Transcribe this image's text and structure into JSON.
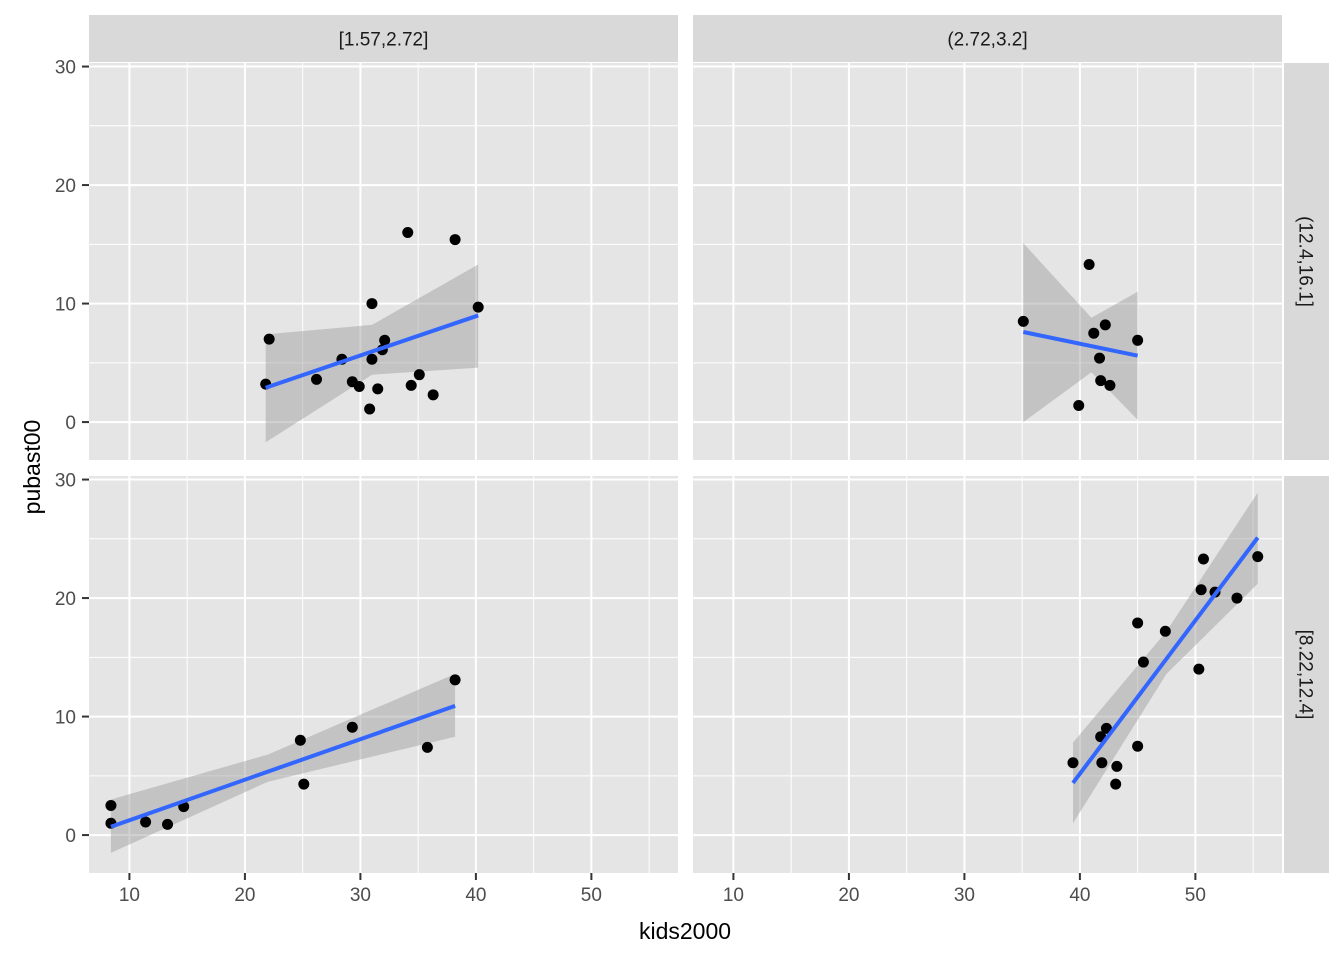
{
  "chart_data": {
    "type": "scatter",
    "facet_type": "grid",
    "xlabel": "kids2000",
    "ylabel": "pubast00",
    "xlim": [
      6.5,
      57.5
    ],
    "ylim": [
      -3.2,
      30.3
    ],
    "x_ticks": [
      10,
      20,
      30,
      40,
      50
    ],
    "y_ticks": [
      0,
      10,
      20,
      30
    ],
    "grid": true,
    "smooth": "lm with confidence band",
    "column_strips": [
      "[1.57,2.72]",
      "(2.72,3.2]"
    ],
    "row_strips": [
      "(12.4,16.1]",
      "[8.22,12.4]"
    ],
    "colors": {
      "panel_bg": "#e5e5e5",
      "strip_bg": "#d9d9d9",
      "grid": "#ffffff",
      "point": "#000000",
      "line": "#3366ff",
      "band": "#999999"
    },
    "panels": [
      {
        "row": 0,
        "col": 0,
        "points": [
          [
            21.8,
            3.2
          ],
          [
            22.1,
            7.0
          ],
          [
            26.2,
            3.6
          ],
          [
            28.4,
            5.3
          ],
          [
            29.3,
            3.4
          ],
          [
            29.9,
            3.0
          ],
          [
            30.8,
            1.1
          ],
          [
            31.0,
            10.0
          ],
          [
            31.0,
            5.3
          ],
          [
            31.5,
            2.8
          ],
          [
            31.9,
            6.1
          ],
          [
            32.1,
            6.9
          ],
          [
            34.1,
            16.0
          ],
          [
            34.4,
            3.1
          ],
          [
            35.1,
            4.0
          ],
          [
            36.3,
            2.3
          ],
          [
            38.2,
            15.4
          ],
          [
            40.2,
            9.7
          ]
        ],
        "fit": {
          "x": [
            21.8,
            40.2
          ],
          "y": [
            2.9,
            9.0
          ]
        },
        "band": {
          "x": [
            21.8,
            31.0,
            40.2
          ],
          "upper": [
            7.4,
            8.2,
            13.3
          ],
          "lower": [
            -1.7,
            4.0,
            4.6
          ]
        }
      },
      {
        "row": 0,
        "col": 1,
        "points": [
          [
            35.1,
            8.5
          ],
          [
            39.9,
            1.4
          ],
          [
            40.8,
            13.3
          ],
          [
            41.2,
            7.5
          ],
          [
            41.7,
            5.4
          ],
          [
            41.8,
            3.5
          ],
          [
            42.2,
            8.2
          ],
          [
            42.6,
            3.1
          ],
          [
            45.0,
            6.9
          ]
        ],
        "fit": {
          "x": [
            35.1,
            45.0
          ],
          "y": [
            7.6,
            5.6
          ]
        },
        "band": {
          "x": [
            35.1,
            41.0,
            45.0
          ],
          "upper": [
            15.1,
            8.8,
            11.0
          ],
          "lower": [
            0.0,
            4.2,
            0.2
          ]
        }
      },
      {
        "row": 1,
        "col": 0,
        "points": [
          [
            8.4,
            2.5
          ],
          [
            8.4,
            1.0
          ],
          [
            11.4,
            1.1
          ],
          [
            13.3,
            0.9
          ],
          [
            14.7,
            2.4
          ],
          [
            24.8,
            8.0
          ],
          [
            25.1,
            4.3
          ],
          [
            29.3,
            9.1
          ],
          [
            35.8,
            7.4
          ],
          [
            38.2,
            13.1
          ]
        ],
        "fit": {
          "x": [
            8.4,
            38.2
          ],
          "y": [
            0.7,
            10.9
          ]
        },
        "band": {
          "x": [
            8.4,
            22.0,
            38.2
          ],
          "upper": [
            3.0,
            6.8,
            13.6
          ],
          "lower": [
            -1.5,
            4.5,
            8.3
          ]
        }
      },
      {
        "row": 1,
        "col": 1,
        "points": [
          [
            39.4,
            6.1
          ],
          [
            41.8,
            8.3
          ],
          [
            41.9,
            6.1
          ],
          [
            42.3,
            9.0
          ],
          [
            43.1,
            4.3
          ],
          [
            43.2,
            5.8
          ],
          [
            45.0,
            17.9
          ],
          [
            45.0,
            7.5
          ],
          [
            45.5,
            14.6
          ],
          [
            47.4,
            17.2
          ],
          [
            50.3,
            14.0
          ],
          [
            50.5,
            20.7
          ],
          [
            50.7,
            23.3
          ],
          [
            51.7,
            20.5
          ],
          [
            53.6,
            20.0
          ],
          [
            55.4,
            23.5
          ]
        ],
        "fit": {
          "x": [
            39.4,
            55.4
          ],
          "y": [
            4.4,
            25.1
          ]
        },
        "band": {
          "x": [
            39.4,
            47.5,
            55.4
          ],
          "upper": [
            7.8,
            17.2,
            28.9
          ],
          "lower": [
            1.0,
            13.6,
            21.2
          ]
        }
      }
    ]
  }
}
